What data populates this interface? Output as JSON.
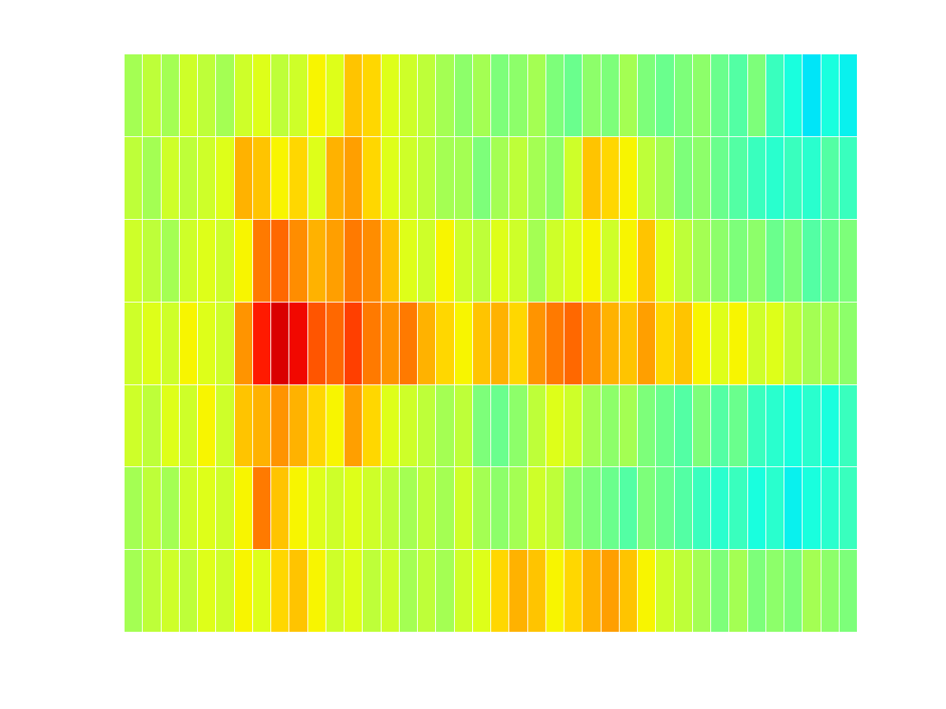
{
  "chart_data": {
    "type": "heatmap",
    "tick_labels": false,
    "clim": [
      0,
      1
    ],
    "cells": [
      [
        0.55,
        0.58,
        0.55,
        0.6,
        0.58,
        0.55,
        0.6,
        0.62,
        0.58,
        0.6,
        0.65,
        0.62,
        0.7,
        0.68,
        0.62,
        0.6,
        0.58,
        0.55,
        0.52,
        0.55,
        0.5,
        0.52,
        0.55,
        0.5,
        0.48,
        0.52,
        0.5,
        0.55,
        0.5,
        0.48,
        0.5,
        0.52,
        0.48,
        0.45,
        0.5,
        0.42,
        0.38,
        0.35,
        0.38,
        0.36
      ],
      [
        0.58,
        0.55,
        0.6,
        0.58,
        0.6,
        0.62,
        0.72,
        0.7,
        0.65,
        0.68,
        0.62,
        0.72,
        0.74,
        0.68,
        0.62,
        0.6,
        0.58,
        0.55,
        0.55,
        0.5,
        0.55,
        0.58,
        0.55,
        0.52,
        0.6,
        0.7,
        0.68,
        0.65,
        0.58,
        0.55,
        0.5,
        0.52,
        0.48,
        0.45,
        0.42,
        0.4,
        0.42,
        0.4,
        0.45,
        0.42
      ],
      [
        0.6,
        0.58,
        0.55,
        0.6,
        0.62,
        0.6,
        0.65,
        0.78,
        0.8,
        0.76,
        0.72,
        0.74,
        0.78,
        0.76,
        0.7,
        0.62,
        0.6,
        0.65,
        0.6,
        0.58,
        0.62,
        0.6,
        0.55,
        0.6,
        0.62,
        0.65,
        0.6,
        0.65,
        0.7,
        0.62,
        0.58,
        0.55,
        0.52,
        0.5,
        0.52,
        0.48,
        0.5,
        0.45,
        0.48,
        0.5
      ],
      [
        0.6,
        0.62,
        0.6,
        0.65,
        0.62,
        0.6,
        0.75,
        0.88,
        0.92,
        0.9,
        0.82,
        0.8,
        0.84,
        0.78,
        0.75,
        0.78,
        0.72,
        0.68,
        0.65,
        0.7,
        0.72,
        0.68,
        0.75,
        0.78,
        0.8,
        0.76,
        0.72,
        0.7,
        0.74,
        0.68,
        0.7,
        0.65,
        0.62,
        0.65,
        0.6,
        0.62,
        0.58,
        0.55,
        0.55,
        0.52
      ],
      [
        0.6,
        0.58,
        0.62,
        0.6,
        0.65,
        0.6,
        0.7,
        0.72,
        0.75,
        0.72,
        0.68,
        0.65,
        0.74,
        0.68,
        0.62,
        0.6,
        0.58,
        0.55,
        0.58,
        0.5,
        0.48,
        0.52,
        0.58,
        0.62,
        0.6,
        0.55,
        0.52,
        0.55,
        0.5,
        0.48,
        0.45,
        0.5,
        0.45,
        0.48,
        0.42,
        0.4,
        0.38,
        0.4,
        0.38,
        0.42
      ],
      [
        0.55,
        0.58,
        0.55,
        0.6,
        0.62,
        0.6,
        0.65,
        0.78,
        0.7,
        0.65,
        0.62,
        0.6,
        0.62,
        0.6,
        0.58,
        0.55,
        0.58,
        0.55,
        0.6,
        0.55,
        0.52,
        0.55,
        0.6,
        0.58,
        0.52,
        0.5,
        0.48,
        0.45,
        0.5,
        0.48,
        0.45,
        0.42,
        0.4,
        0.42,
        0.38,
        0.4,
        0.36,
        0.38,
        0.4,
        0.42
      ],
      [
        0.55,
        0.58,
        0.6,
        0.58,
        0.62,
        0.6,
        0.65,
        0.62,
        0.68,
        0.7,
        0.65,
        0.6,
        0.62,
        0.58,
        0.6,
        0.55,
        0.58,
        0.55,
        0.6,
        0.62,
        0.68,
        0.72,
        0.7,
        0.65,
        0.68,
        0.72,
        0.74,
        0.7,
        0.65,
        0.6,
        0.58,
        0.55,
        0.5,
        0.55,
        0.5,
        0.52,
        0.5,
        0.55,
        0.52,
        0.5
      ]
    ]
  }
}
